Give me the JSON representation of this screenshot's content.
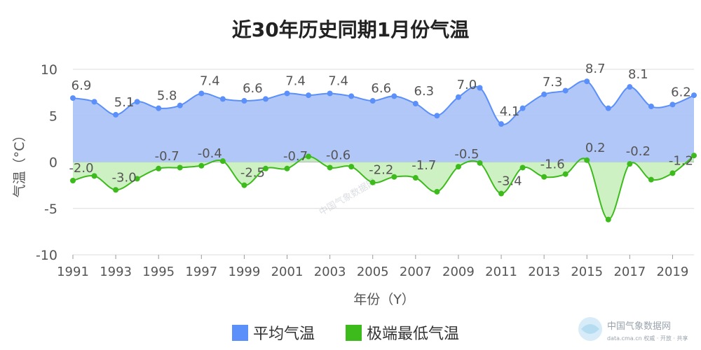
{
  "chart_data": {
    "type": "area",
    "title": "近30年历史同期1月份气温",
    "xlabel": "年份（Y）",
    "ylabel": "气温（°C）",
    "ylim": [
      -10,
      10
    ],
    "yticks": [
      "10",
      "5",
      "0",
      "-5",
      "-10"
    ],
    "xticks": [
      "1991",
      "1993",
      "1995",
      "1997",
      "1999",
      "2001",
      "2003",
      "2005",
      "2007",
      "2009",
      "2011",
      "2013",
      "2015",
      "2017",
      "2019"
    ],
    "x": [
      1991,
      1992,
      1993,
      1994,
      1995,
      1996,
      1997,
      1998,
      1999,
      2000,
      2001,
      2002,
      2003,
      2004,
      2005,
      2006,
      2007,
      2008,
      2009,
      2010,
      2011,
      2012,
      2013,
      2014,
      2015,
      2016,
      2017,
      2018,
      2019,
      2020
    ],
    "grid": true,
    "legend_position": "bottom",
    "series": [
      {
        "name": "平均气温",
        "color": "#5b8ff9",
        "fill": "#a9c1f7",
        "values": [
          6.9,
          6.5,
          5.1,
          6.5,
          5.8,
          6.1,
          7.4,
          6.8,
          6.6,
          6.8,
          7.4,
          7.2,
          7.4,
          7.1,
          6.6,
          7.1,
          6.3,
          5.0,
          7.0,
          8.0,
          4.1,
          5.8,
          7.3,
          7.7,
          8.7,
          5.8,
          8.1,
          6.0,
          6.2,
          7.2
        ],
        "labels": [
          "6.9",
          "",
          "5.1",
          "",
          "5.8",
          "",
          "7.4",
          "",
          "6.6",
          "",
          "7.4",
          "",
          "7.4",
          "",
          "6.6",
          "",
          "6.3",
          "",
          "7.0",
          "",
          "4.1",
          "",
          "7.3",
          "",
          "8.7",
          "",
          "8.1",
          "",
          "6.2",
          ""
        ]
      },
      {
        "name": "极端最低气温",
        "color": "#3dbb1c",
        "fill": "#c6efb8",
        "values": [
          -2.0,
          -1.5,
          -3.0,
          -1.8,
          -0.7,
          -0.6,
          -0.4,
          0.1,
          -2.5,
          -0.7,
          -0.7,
          0.6,
          -0.6,
          -0.5,
          -2.2,
          -1.6,
          -1.7,
          -3.2,
          -0.5,
          -0.1,
          -3.4,
          -0.6,
          -1.6,
          -1.3,
          0.2,
          -6.2,
          -0.2,
          -1.9,
          -1.2,
          0.7
        ],
        "labels": [
          "-2.0",
          "",
          "-3.0",
          "",
          "-0.7",
          "",
          "-0.4",
          "",
          "-2.5",
          "",
          "-0.7",
          "",
          "-0.6",
          "",
          "-2.2",
          "",
          "-1.7",
          "",
          "-0.5",
          "",
          "-3.4",
          "",
          "-1.6",
          "",
          "0.2",
          "",
          "-0.2",
          "",
          "-1.2",
          ""
        ]
      }
    ]
  },
  "watermark": {
    "text": "中国气象数据网",
    "subtext": "data.cma.cn 权威 · 开放 · 共享",
    "overlay_text": "中国气象数据网"
  }
}
